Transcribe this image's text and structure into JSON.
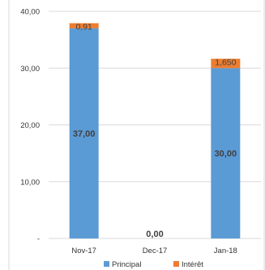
{
  "chart_data": {
    "type": "bar",
    "stacked": true,
    "categories": [
      "Nov-17",
      "Dec-17",
      "Jan-18"
    ],
    "series": [
      {
        "name": "Principal",
        "values": [
          37.0,
          0.0,
          30.0
        ],
        "color": "#5b9bd5"
      },
      {
        "name": "Intérêt",
        "values": [
          0.91,
          0.0,
          1.65
        ],
        "color": "#ed7d31"
      }
    ],
    "data_labels": {
      "Principal": [
        "37,00",
        "0,00",
        "30,00"
      ],
      "Intérêt": [
        "0,91",
        "",
        "1,650"
      ]
    },
    "y_ticks": [
      "-",
      "10,00",
      "20,00",
      "30,00",
      "40,00"
    ],
    "y_tick_values": [
      0,
      10,
      20,
      30,
      40
    ],
    "ylim": [
      0,
      40
    ],
    "grid": true,
    "legend_position": "bottom"
  }
}
